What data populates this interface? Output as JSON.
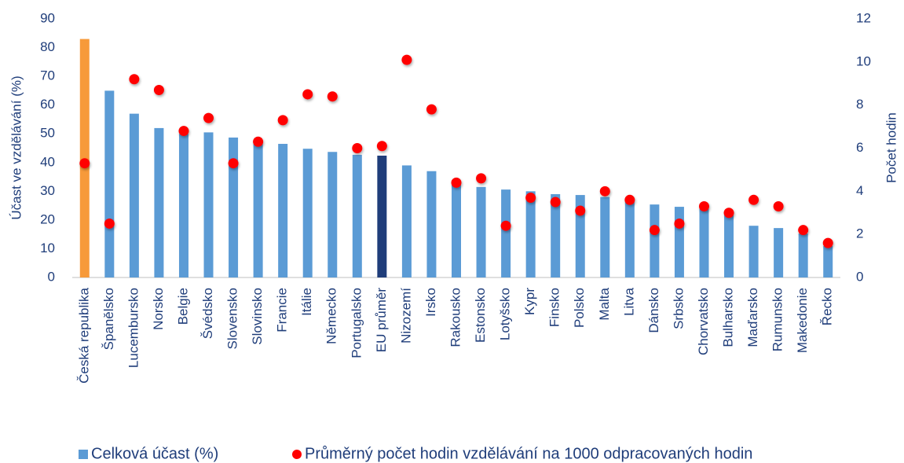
{
  "chart_data": {
    "type": "bar",
    "y_label": "Účast ve vzdělávání (%)",
    "y2_label": "Počet hodin",
    "categories": [
      "Česká republika",
      "Španělsko",
      "Lucembursko",
      "Norsko",
      "Belgie",
      "Švédsko",
      "Slovensko",
      "Slovinsko",
      "Francie",
      "Itálie",
      "Německo",
      "Portugalsko",
      "EU průměr",
      "Nizozemí",
      "Irsko",
      "Rakousko",
      "Estonsko",
      "Lotyšsko",
      "Kypr",
      "Finsko",
      "Polsko",
      "Malta",
      "Litva",
      "Dánsko",
      "Srbsko",
      "Chorvatsko",
      "Bulharsko",
      "Maďarsko",
      "Rumunsko",
      "Makedonie",
      "Řecko"
    ],
    "series": [
      {
        "name": "Celková účast (%)",
        "type": "bar",
        "color": "#5b9bd5",
        "colors": [
          "#f79a3a",
          "#5b9bd5",
          "#5b9bd5",
          "#5b9bd5",
          "#5b9bd5",
          "#5b9bd5",
          "#5b9bd5",
          "#5b9bd5",
          "#5b9bd5",
          "#5b9bd5",
          "#5b9bd5",
          "#5b9bd5",
          "#1f3d7a",
          "#5b9bd5",
          "#5b9bd5",
          "#5b9bd5",
          "#5b9bd5",
          "#5b9bd5",
          "#5b9bd5",
          "#5b9bd5",
          "#5b9bd5",
          "#5b9bd5",
          "#5b9bd5",
          "#5b9bd5",
          "#5b9bd5",
          "#5b9bd5",
          "#5b9bd5",
          "#5b9bd5",
          "#5b9bd5",
          "#5b9bd5",
          "#5b9bd5"
        ],
        "values": [
          83,
          65,
          57,
          52,
          50,
          50.5,
          48.7,
          47,
          46.5,
          44.8,
          43.7,
          42.7,
          42.4,
          39,
          37,
          33,
          31.5,
          30.6,
          30,
          29,
          28.7,
          28,
          27,
          25.4,
          24.6,
          24,
          22.7,
          18,
          17.2,
          15.3,
          11
        ]
      },
      {
        "name": "Průměrný počet hodin vzdělávání na 1000 odpracovaných hodin",
        "type": "scatter",
        "axis": "y2",
        "color": "#ff0000",
        "values": [
          5.3,
          2.5,
          9.2,
          8.7,
          6.8,
          7.4,
          5.3,
          6.3,
          7.3,
          8.5,
          8.4,
          6.0,
          6.1,
          10.1,
          7.8,
          4.4,
          4.6,
          2.4,
          3.7,
          3.5,
          3.1,
          4.0,
          3.6,
          2.2,
          2.5,
          3.3,
          3.0,
          3.6,
          3.3,
          2.2,
          1.6
        ]
      }
    ],
    "ylim": [
      0,
      90
    ],
    "yticks": [
      0,
      10,
      20,
      30,
      40,
      50,
      60,
      70,
      80,
      90
    ],
    "y2lim": [
      0,
      12
    ],
    "y2ticks": [
      0,
      2,
      4,
      6,
      8,
      10,
      12
    ],
    "legend": "bottom"
  }
}
